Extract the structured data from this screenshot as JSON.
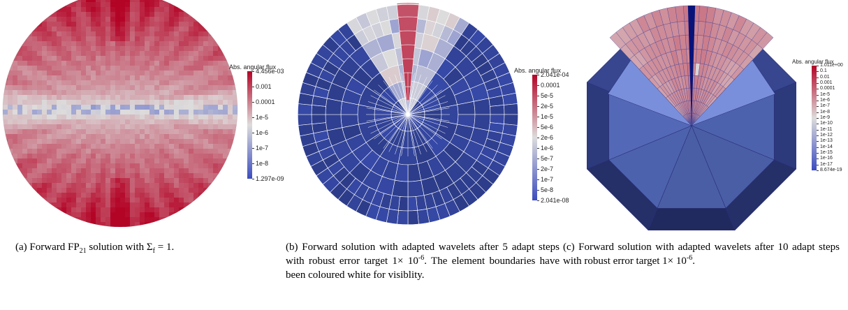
{
  "panels": [
    {
      "colorbar": {
        "title": "Abs. angular flux",
        "ticks": [
          "4.456e-03",
          "0.001",
          "0.0001",
          "1e-5",
          "1e-6",
          "1e-7",
          "1e-8",
          "1.297e-09"
        ]
      },
      "caption": {
        "prefix": "(a) Forward FP",
        "sub1": "21",
        "middle": " solution with Σ",
        "sub2": "f",
        "suffix": " = 1."
      }
    },
    {
      "colorbar": {
        "title": "Abs. angular flux",
        "ticks": [
          "2.041e-04",
          "0.0001",
          "5e-5",
          "2e-5",
          "1e-5",
          "5e-6",
          "2e-6",
          "1e-6",
          "5e-7",
          "2e-7",
          "1e-7",
          "5e-8",
          "2.041e-08"
        ]
      },
      "caption": {
        "line1": "(b) Forward solution with adapted wavelets after 5 adapt steps with robust error target 1× 10",
        "sup": "-6",
        "line2": ". The element boundaries have been coloured white for visiblity."
      }
    },
    {
      "colorbar": {
        "title": "Abs. angular flux",
        "ticks": [
          "1.011e+00",
          "0.1",
          "0.01",
          "0.001",
          "0.0001",
          "1e-5",
          "1e-6",
          "1e-7",
          "1e-8",
          "1e-9",
          "1e-10",
          "1e-11",
          "1e-12",
          "1e-13",
          "1e-14",
          "1e-15",
          "1e-16",
          "1e-17",
          "8.674e-19"
        ]
      },
      "caption": {
        "line1": "(c) Forward solution with adapted wavelets after 10 adapt steps with robust error target 1× 10",
        "sup": "-6",
        "suffix": "."
      }
    }
  ],
  "colors": {
    "high": "#b40426",
    "mid": "#dddcdc",
    "low": "#3b4cc0",
    "mesh_white": "#ffffff",
    "mesh_dark": "#2a2f7a"
  }
}
